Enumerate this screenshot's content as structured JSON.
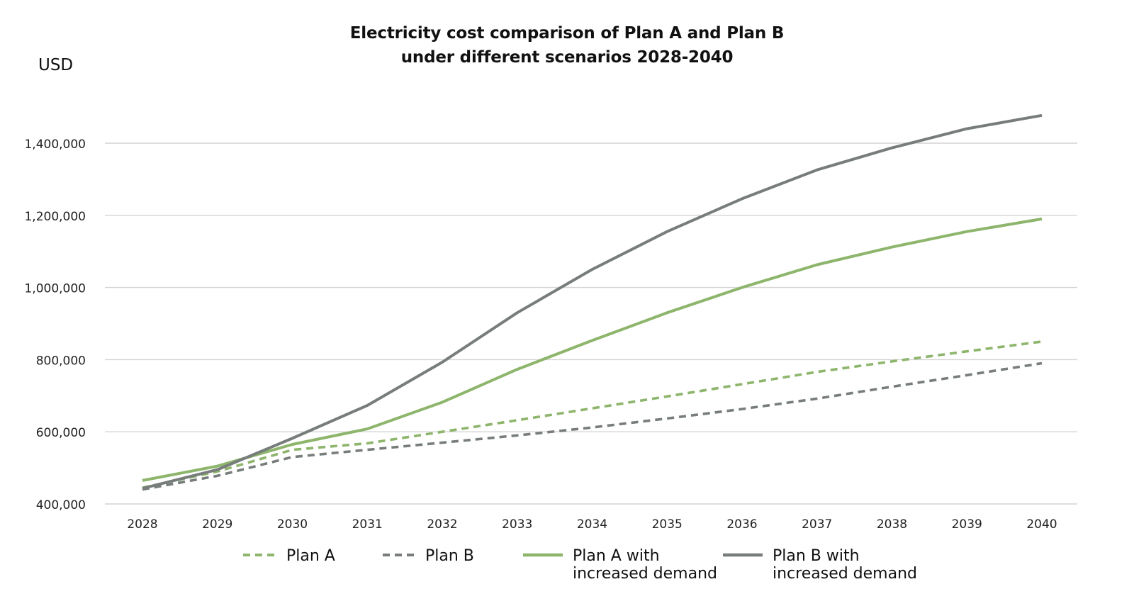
{
  "chart_data": {
    "type": "line",
    "title_lines": [
      "Electricity cost comparison of Plan A and Plan B",
      "under different scenarios 2028-2040"
    ],
    "ylabel": "USD",
    "xlabel": "",
    "ylim": [
      400000,
      1500000
    ],
    "yticks": [
      400000,
      600000,
      800000,
      1000000,
      1200000,
      1400000
    ],
    "ytick_labels": [
      "400,000",
      "600,000",
      "800,000",
      "1,000,000",
      "1,200,000",
      "1,400,000"
    ],
    "categories": [
      "2028",
      "2029",
      "2030",
      "2031",
      "2032",
      "2033",
      "2034",
      "2035",
      "2036",
      "2037",
      "2038",
      "2039",
      "2040"
    ],
    "grid": true,
    "legend_position": "bottom",
    "series": [
      {
        "name": "Plan A",
        "legend_lines": [
          "Plan A"
        ],
        "style": "dashed",
        "color": "#8db56b",
        "values": [
          445000,
          490000,
          550000,
          568000,
          600000,
          632000,
          665000,
          698000,
          732000,
          766000,
          795000,
          823000,
          850000
        ]
      },
      {
        "name": "Plan B",
        "legend_lines": [
          "Plan B"
        ],
        "style": "dashed",
        "color": "#767d7b",
        "values": [
          440000,
          478000,
          530000,
          550000,
          570000,
          590000,
          612000,
          637000,
          663000,
          692000,
          725000,
          757000,
          790000
        ]
      },
      {
        "name": "Plan A with increased demand",
        "legend_lines": [
          "Plan A with",
          "increased demand"
        ],
        "style": "solid",
        "color": "#8db56b",
        "values": [
          465000,
          505000,
          565000,
          608000,
          682000,
          773000,
          853000,
          930000,
          1000000,
          1063000,
          1112000,
          1155000,
          1190000
        ]
      },
      {
        "name": "Plan B with increased demand",
        "legend_lines": [
          "Plan B with",
          "increased demand"
        ],
        "style": "solid",
        "color": "#767d7b",
        "values": [
          443000,
          495000,
          582000,
          673000,
          793000,
          930000,
          1050000,
          1155000,
          1246000,
          1326000,
          1387000,
          1440000,
          1477000
        ]
      }
    ]
  }
}
